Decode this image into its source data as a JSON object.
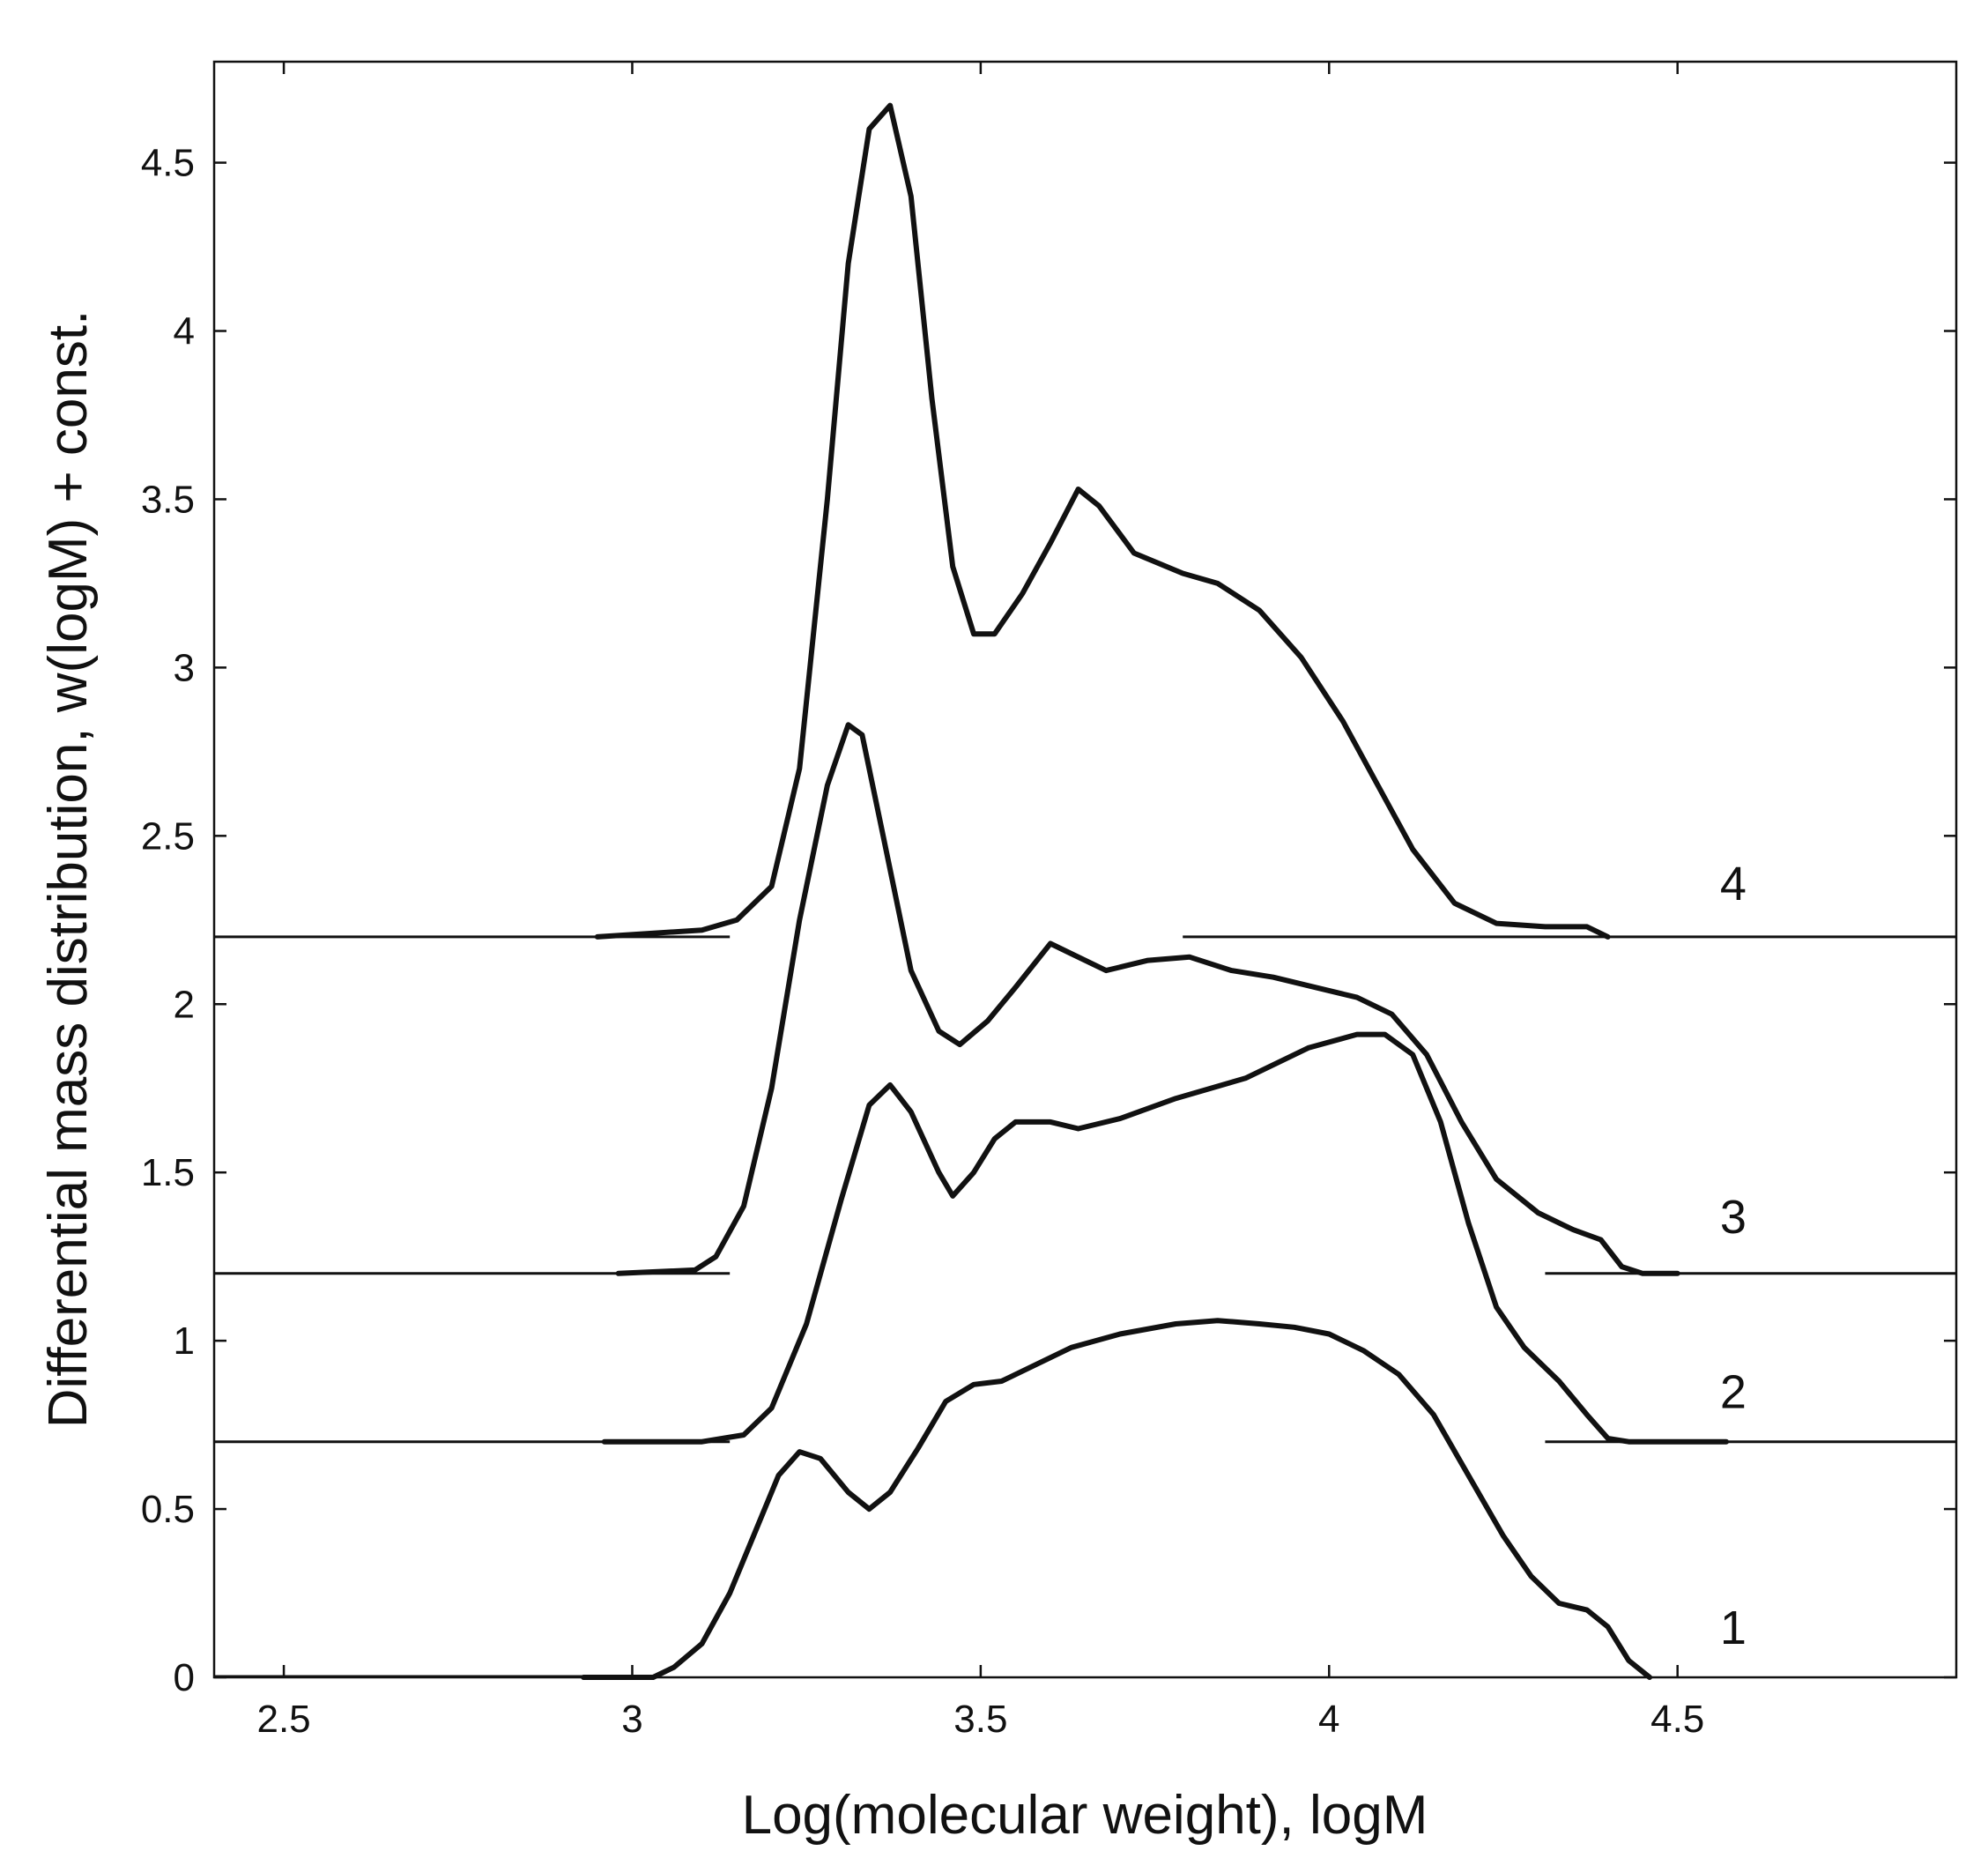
{
  "chart_data": {
    "type": "line",
    "title": "",
    "xlabel": "Log(molecular weight), logM",
    "ylabel": "Differential mass distribution, w(logM)  +  const.",
    "xlim": [
      2.4,
      4.9
    ],
    "ylim": [
      0,
      4.8
    ],
    "xticks": [
      {
        "value": 2.5,
        "label": "2.5"
      },
      {
        "value": 3.0,
        "label": "3"
      },
      {
        "value": 3.5,
        "label": "3.5"
      },
      {
        "value": 4.0,
        "label": "4"
      },
      {
        "value": 4.5,
        "label": "4.5"
      }
    ],
    "yticks": [
      {
        "value": 0,
        "label": "0"
      },
      {
        "value": 0.5,
        "label": "0.5"
      },
      {
        "value": 1.0,
        "label": "1"
      },
      {
        "value": 1.5,
        "label": "1.5"
      },
      {
        "value": 2.0,
        "label": "2"
      },
      {
        "value": 2.5,
        "label": "2.5"
      },
      {
        "value": 3.0,
        "label": "3"
      },
      {
        "value": 3.5,
        "label": "3.5"
      },
      {
        "value": 4.0,
        "label": "4"
      },
      {
        "value": 4.5,
        "label": "4.5"
      }
    ],
    "grid": false,
    "legend": "none",
    "series": [
      {
        "name": "1",
        "offset": 0,
        "baseline_segments": [
          [
            2.4,
            2.93
          ]
        ],
        "label_x": 4.58,
        "label_y": 0.1,
        "points": [
          [
            2.93,
            0
          ],
          [
            3.03,
            0
          ],
          [
            3.06,
            0.03
          ],
          [
            3.1,
            0.1
          ],
          [
            3.14,
            0.25
          ],
          [
            3.18,
            0.45
          ],
          [
            3.21,
            0.6
          ],
          [
            3.24,
            0.67
          ],
          [
            3.27,
            0.65
          ],
          [
            3.31,
            0.55
          ],
          [
            3.34,
            0.5
          ],
          [
            3.37,
            0.55
          ],
          [
            3.41,
            0.68
          ],
          [
            3.45,
            0.82
          ],
          [
            3.49,
            0.87
          ],
          [
            3.53,
            0.88
          ],
          [
            3.58,
            0.93
          ],
          [
            3.63,
            0.98
          ],
          [
            3.7,
            1.02
          ],
          [
            3.78,
            1.05
          ],
          [
            3.84,
            1.06
          ],
          [
            3.9,
            1.05
          ],
          [
            3.95,
            1.04
          ],
          [
            4.0,
            1.02
          ],
          [
            4.05,
            0.97
          ],
          [
            4.1,
            0.9
          ],
          [
            4.15,
            0.78
          ],
          [
            4.2,
            0.6
          ],
          [
            4.25,
            0.42
          ],
          [
            4.29,
            0.3
          ],
          [
            4.33,
            0.22
          ],
          [
            4.37,
            0.2
          ],
          [
            4.4,
            0.15
          ],
          [
            4.43,
            0.05
          ],
          [
            4.46,
            0
          ]
        ]
      },
      {
        "name": "2",
        "offset": 0.7,
        "baseline_segments": [
          [
            2.4,
            3.14
          ],
          [
            4.31,
            4.9
          ]
        ],
        "label_x": 4.58,
        "label_y": 0.8,
        "points": [
          [
            2.96,
            0.7
          ],
          [
            3.1,
            0.7
          ],
          [
            3.16,
            0.72
          ],
          [
            3.2,
            0.8
          ],
          [
            3.25,
            1.05
          ],
          [
            3.3,
            1.42
          ],
          [
            3.34,
            1.7
          ],
          [
            3.37,
            1.76
          ],
          [
            3.4,
            1.68
          ],
          [
            3.44,
            1.5
          ],
          [
            3.46,
            1.43
          ],
          [
            3.49,
            1.5
          ],
          [
            3.52,
            1.6
          ],
          [
            3.55,
            1.65
          ],
          [
            3.6,
            1.65
          ],
          [
            3.64,
            1.63
          ],
          [
            3.7,
            1.66
          ],
          [
            3.78,
            1.72
          ],
          [
            3.88,
            1.78
          ],
          [
            3.97,
            1.87
          ],
          [
            4.04,
            1.91
          ],
          [
            4.08,
            1.91
          ],
          [
            4.12,
            1.85
          ],
          [
            4.16,
            1.65
          ],
          [
            4.2,
            1.35
          ],
          [
            4.24,
            1.1
          ],
          [
            4.28,
            0.98
          ],
          [
            4.33,
            0.88
          ],
          [
            4.37,
            0.78
          ],
          [
            4.4,
            0.71
          ],
          [
            4.43,
            0.7
          ],
          [
            4.57,
            0.7
          ]
        ]
      },
      {
        "name": "3",
        "offset": 1.2,
        "baseline_segments": [
          [
            2.4,
            3.14
          ],
          [
            4.31,
            4.9
          ]
        ],
        "label_x": 4.58,
        "label_y": 1.32,
        "points": [
          [
            2.98,
            1.2
          ],
          [
            3.09,
            1.21
          ],
          [
            3.12,
            1.25
          ],
          [
            3.16,
            1.4
          ],
          [
            3.2,
            1.75
          ],
          [
            3.24,
            2.25
          ],
          [
            3.28,
            2.65
          ],
          [
            3.31,
            2.83
          ],
          [
            3.33,
            2.8
          ],
          [
            3.36,
            2.5
          ],
          [
            3.4,
            2.1
          ],
          [
            3.44,
            1.92
          ],
          [
            3.47,
            1.88
          ],
          [
            3.51,
            1.95
          ],
          [
            3.55,
            2.05
          ],
          [
            3.6,
            2.18
          ],
          [
            3.63,
            2.15
          ],
          [
            3.68,
            2.1
          ],
          [
            3.74,
            2.13
          ],
          [
            3.8,
            2.14
          ],
          [
            3.86,
            2.1
          ],
          [
            3.92,
            2.08
          ],
          [
            3.98,
            2.05
          ],
          [
            4.04,
            2.02
          ],
          [
            4.09,
            1.97
          ],
          [
            4.14,
            1.85
          ],
          [
            4.19,
            1.65
          ],
          [
            4.24,
            1.48
          ],
          [
            4.3,
            1.38
          ],
          [
            4.35,
            1.33
          ],
          [
            4.39,
            1.3
          ],
          [
            4.42,
            1.22
          ],
          [
            4.45,
            1.2
          ],
          [
            4.5,
            1.2
          ]
        ]
      },
      {
        "name": "4",
        "offset": 2.2,
        "baseline_segments": [
          [
            2.4,
            3.14
          ],
          [
            3.79,
            4.9
          ]
        ],
        "label_x": 4.58,
        "label_y": 2.31,
        "points": [
          [
            2.95,
            2.2
          ],
          [
            3.1,
            2.22
          ],
          [
            3.15,
            2.25
          ],
          [
            3.2,
            2.35
          ],
          [
            3.24,
            2.7
          ],
          [
            3.28,
            3.5
          ],
          [
            3.31,
            4.2
          ],
          [
            3.34,
            4.6
          ],
          [
            3.37,
            4.67
          ],
          [
            3.4,
            4.4
          ],
          [
            3.43,
            3.8
          ],
          [
            3.46,
            3.3
          ],
          [
            3.49,
            3.1
          ],
          [
            3.52,
            3.1
          ],
          [
            3.56,
            3.22
          ],
          [
            3.6,
            3.37
          ],
          [
            3.64,
            3.53
          ],
          [
            3.67,
            3.48
          ],
          [
            3.72,
            3.34
          ],
          [
            3.79,
            3.28
          ],
          [
            3.84,
            3.25
          ],
          [
            3.9,
            3.17
          ],
          [
            3.96,
            3.03
          ],
          [
            4.02,
            2.84
          ],
          [
            4.07,
            2.65
          ],
          [
            4.12,
            2.46
          ],
          [
            4.18,
            2.3
          ],
          [
            4.24,
            2.24
          ],
          [
            4.31,
            2.23
          ],
          [
            4.37,
            2.23
          ],
          [
            4.4,
            2.2
          ]
        ]
      }
    ]
  }
}
